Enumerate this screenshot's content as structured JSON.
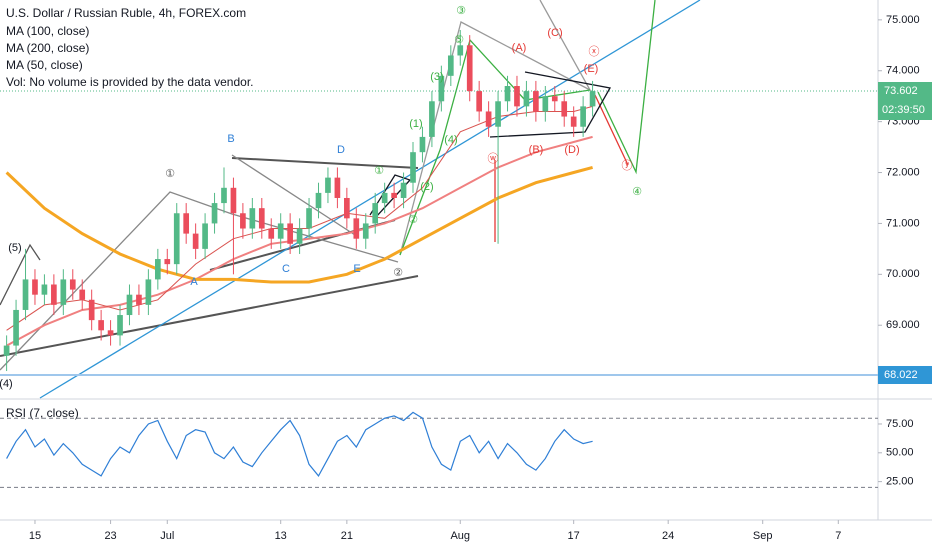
{
  "chart_data": {
    "type": "candlestick",
    "title": "U.S. Dollar / Russian Ruble, 4h, FOREX.com",
    "volume_note": "Vol: No volume is provided by the data vendor.",
    "up_color": "#53b987",
    "down_color": "#eb4d5c",
    "x": [
      -3,
      -2,
      -1,
      0,
      1,
      2,
      3,
      4,
      5,
      6,
      7,
      8,
      9,
      10,
      11,
      12,
      13,
      14,
      15,
      16,
      17,
      18,
      19,
      20,
      21,
      22,
      23,
      24,
      25,
      26,
      27,
      28,
      29,
      30,
      31,
      32,
      33,
      34,
      35,
      36,
      37,
      38,
      39,
      40,
      41,
      42,
      43,
      44,
      45,
      46,
      47,
      48,
      49,
      50,
      51,
      52,
      53,
      54,
      55,
      56,
      57,
      58,
      59
    ],
    "open": [
      68.4,
      68.6,
      69.3,
      69.9,
      69.6,
      69.8,
      69.4,
      69.9,
      69.7,
      69.5,
      69.1,
      68.9,
      68.8,
      69.2,
      69.6,
      69.4,
      69.9,
      70.3,
      70.2,
      71.2,
      70.8,
      70.5,
      71.0,
      71.4,
      71.7,
      71.2,
      70.9,
      71.3,
      70.9,
      70.7,
      71.0,
      70.6,
      70.9,
      71.3,
      71.6,
      71.9,
      71.5,
      71.1,
      70.7,
      71.0,
      71.4,
      71.6,
      71.5,
      71.8,
      72.4,
      72.7,
      73.4,
      73.9,
      74.3,
      74.5,
      73.6,
      73.2,
      72.9,
      73.4,
      73.7,
      73.3,
      73.6,
      73.2,
      73.5,
      73.4,
      73.1,
      72.9,
      73.3
    ],
    "high": [
      68.8,
      69.5,
      70.5,
      70.1,
      70.0,
      70.0,
      70.1,
      70.1,
      69.9,
      69.7,
      69.3,
      69.1,
      69.4,
      69.8,
      69.8,
      70.1,
      70.5,
      70.5,
      71.4,
      71.4,
      71.0,
      71.2,
      71.6,
      72.1,
      71.9,
      71.4,
      71.5,
      71.5,
      71.1,
      71.2,
      71.2,
      71.1,
      71.5,
      71.8,
      72.1,
      72.1,
      71.7,
      71.3,
      71.2,
      71.6,
      71.8,
      71.8,
      72.0,
      72.6,
      72.9,
      73.6,
      74.1,
      74.5,
      74.8,
      74.7,
      73.8,
      73.4,
      73.6,
      73.9,
      73.9,
      73.8,
      73.8,
      73.7,
      73.7,
      73.6,
      73.3,
      73.5,
      73.8
    ],
    "low": [
      68.1,
      68.4,
      69.1,
      69.4,
      69.4,
      69.2,
      69.2,
      69.5,
      69.3,
      68.9,
      68.7,
      68.6,
      68.6,
      69.0,
      69.2,
      69.2,
      69.7,
      70.0,
      70.0,
      70.6,
      70.3,
      70.3,
      70.8,
      71.2,
      70.0,
      70.7,
      70.7,
      70.7,
      70.5,
      70.5,
      70.4,
      70.4,
      70.7,
      71.1,
      71.4,
      71.3,
      70.9,
      70.5,
      70.5,
      70.8,
      71.2,
      71.3,
      71.3,
      71.6,
      72.2,
      72.5,
      73.2,
      73.7,
      74.1,
      73.4,
      73.0,
      72.7,
      70.6,
      73.2,
      73.1,
      73.1,
      73.0,
      73.0,
      73.2,
      72.9,
      72.7,
      72.7,
      73.1
    ],
    "close": [
      68.6,
      69.3,
      69.9,
      69.6,
      69.8,
      69.4,
      69.9,
      69.7,
      69.5,
      69.1,
      68.9,
      68.8,
      69.2,
      69.6,
      69.4,
      69.9,
      70.3,
      70.2,
      71.2,
      70.8,
      70.5,
      71.0,
      71.4,
      71.7,
      71.2,
      70.9,
      71.3,
      70.9,
      70.7,
      71.0,
      70.6,
      70.9,
      71.3,
      71.6,
      71.9,
      71.5,
      71.1,
      70.7,
      71.0,
      71.4,
      71.6,
      71.5,
      71.8,
      72.4,
      72.7,
      73.4,
      73.9,
      74.3,
      74.5,
      73.6,
      73.2,
      72.9,
      73.4,
      73.7,
      73.3,
      73.6,
      73.2,
      73.5,
      73.4,
      73.1,
      72.9,
      73.3,
      73.6
    ],
    "overlays": [
      {
        "name": "MA (100, close)",
        "color": "#f08080",
        "width": 2,
        "x": [
          -3,
          1,
          5,
          9,
          13,
          17,
          21,
          25,
          29,
          33,
          37,
          41,
          45,
          49,
          53,
          57,
          59
        ],
        "values": [
          68.6,
          69.0,
          69.3,
          69.4,
          69.6,
          69.9,
          70.3,
          70.6,
          70.7,
          70.8,
          71.0,
          71.3,
          71.7,
          72.1,
          72.4,
          72.6,
          72.7
        ]
      },
      {
        "name": "MA (200, close)",
        "color": "#f5a623",
        "width": 3,
        "x": [
          -3,
          1,
          5,
          9,
          13,
          17,
          21,
          25,
          29,
          33,
          37,
          41,
          45,
          49,
          53,
          57,
          59
        ],
        "values": [
          72.0,
          71.3,
          70.8,
          70.4,
          70.1,
          69.9,
          69.9,
          69.85,
          69.85,
          70.0,
          70.3,
          70.7,
          71.1,
          71.5,
          71.8,
          72.0,
          72.1
        ]
      },
      {
        "name": "MA (50, close)",
        "color": "#d9534f",
        "width": 1,
        "x": [
          -3,
          1,
          5,
          9,
          13,
          17,
          21,
          25,
          29,
          33,
          37,
          41,
          45,
          49,
          53,
          57,
          59
        ],
        "values": [
          68.9,
          69.4,
          69.5,
          69.3,
          69.5,
          70.2,
          70.7,
          70.9,
          70.9,
          71.2,
          71.1,
          71.7,
          72.8,
          73.1,
          73.2,
          73.2,
          73.3
        ]
      }
    ],
    "xlim": [
      -3.7,
      89.2
    ],
    "xticks": [
      {
        "value": 0,
        "label": "15"
      },
      {
        "value": 8,
        "label": "23"
      },
      {
        "value": 14,
        "label": "Jul"
      },
      {
        "value": 26,
        "label": "13"
      },
      {
        "value": 33,
        "label": "21"
      },
      {
        "value": 45,
        "label": "Aug"
      },
      {
        "value": 57,
        "label": "17"
      },
      {
        "value": 67,
        "label": "24"
      },
      {
        "value": 77,
        "label": "Sep"
      },
      {
        "value": 85,
        "label": "7"
      }
    ],
    "ylim": [
      67.57,
      75.39
    ],
    "yticks": [
      {
        "value": 69,
        "label": "69.000"
      },
      {
        "value": 70,
        "label": "70.000"
      },
      {
        "value": 71,
        "label": "71.000"
      },
      {
        "value": 72,
        "label": "72.000"
      },
      {
        "value": 73,
        "label": "73.000"
      },
      {
        "value": 74,
        "label": "74.000"
      },
      {
        "value": 75,
        "label": "75.000"
      }
    ],
    "last_price": {
      "value": 73.602,
      "label": "73.602"
    },
    "countdown": "02:39:50",
    "level": {
      "value": 68.022,
      "label": "68.022"
    },
    "rsi": {
      "name": "RSI (7, close)",
      "color": "#2f7fd6",
      "x": [
        -3,
        -2,
        -1,
        0,
        1,
        2,
        3,
        4,
        5,
        6,
        7,
        8,
        9,
        10,
        11,
        12,
        13,
        14,
        15,
        16,
        17,
        18,
        19,
        20,
        21,
        22,
        23,
        24,
        25,
        26,
        27,
        28,
        29,
        30,
        31,
        32,
        33,
        34,
        35,
        36,
        37,
        38,
        39,
        40,
        41,
        42,
        43,
        44,
        45,
        46,
        47,
        48,
        49,
        50,
        51,
        52,
        53,
        54,
        55,
        56,
        57,
        58,
        59
      ],
      "values": [
        45,
        60,
        70,
        55,
        62,
        48,
        58,
        50,
        40,
        35,
        30,
        45,
        55,
        50,
        65,
        75,
        78,
        60,
        45,
        65,
        70,
        68,
        50,
        45,
        55,
        42,
        38,
        50,
        60,
        70,
        78,
        65,
        40,
        30,
        45,
        60,
        65,
        55,
        70,
        75,
        80,
        82,
        78,
        85,
        80,
        55,
        40,
        35,
        60,
        65,
        50,
        60,
        45,
        58,
        50,
        40,
        35,
        45,
        60,
        70,
        62,
        58,
        60
      ],
      "ylim": [
        -8.3,
        95.8
      ],
      "yticks": [
        {
          "value": 25,
          "label": "25.00"
        },
        {
          "value": 50,
          "label": "50.00"
        },
        {
          "value": 75,
          "label": "75.00"
        }
      ],
      "bands": [
        80,
        20
      ]
    },
    "annotations": [
      {
        "text": "(5)",
        "color": "#131722"
      },
      {
        "text": "(4)",
        "color": "#131722"
      },
      {
        "text": "①",
        "color": "#555"
      },
      {
        "text": "B",
        "color": "#2f7fd6"
      },
      {
        "text": "A",
        "color": "#2f7fd6"
      },
      {
        "text": "C",
        "color": "#2f7fd6"
      },
      {
        "text": "D",
        "color": "#2f7fd6"
      },
      {
        "text": "E",
        "color": "#2f7fd6"
      },
      {
        "text": "②",
        "color": "#555"
      },
      {
        "text": "①",
        "color": "#3cb043"
      },
      {
        "text": "②",
        "color": "#3cb043"
      },
      {
        "text": "(2)",
        "color": "#3cb043"
      },
      {
        "text": "(1)",
        "color": "#3cb043"
      },
      {
        "text": "(3)",
        "color": "#3cb043"
      },
      {
        "text": "(4)",
        "color": "#3cb043"
      },
      {
        "text": "⑤",
        "color": "#3cb043"
      },
      {
        "text": "③",
        "color": "#3cb043"
      },
      {
        "text": "(A)",
        "color": "#e53935"
      },
      {
        "text": "(C)",
        "color": "#e53935"
      },
      {
        "text": "ⓧ",
        "color": "#e53935"
      },
      {
        "text": "(E)",
        "color": "#e53935"
      },
      {
        "text": "ⓦ",
        "color": "#e53935"
      },
      {
        "text": "(B)",
        "color": "#e53935"
      },
      {
        "text": "(D)",
        "color": "#e53935"
      },
      {
        "text": "ⓨ",
        "color": "#e53935"
      },
      {
        "text": "④",
        "color": "#3cb043"
      }
    ]
  }
}
